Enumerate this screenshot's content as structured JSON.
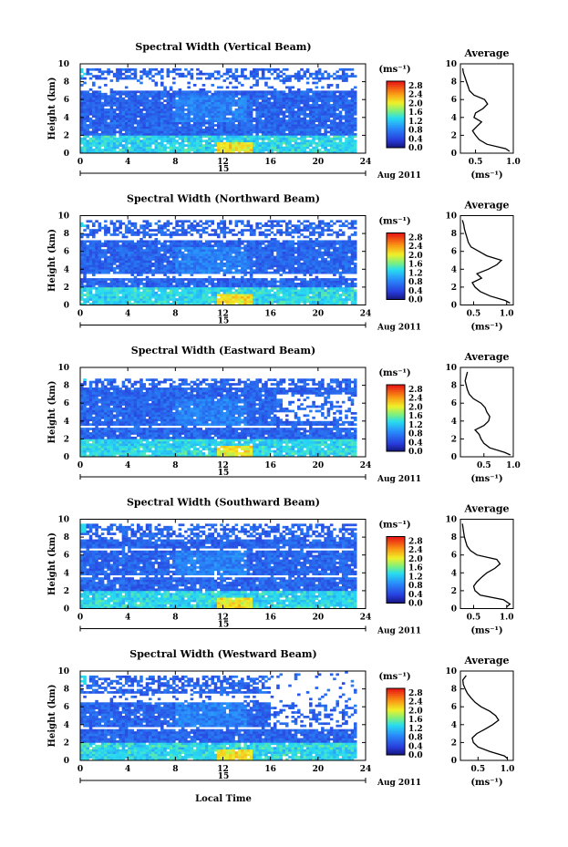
{
  "figure": {
    "xlabel_bottom": "Local Time",
    "unit_label": "(ms⁻¹)",
    "date_label": "Aug 2011",
    "day_label": "15",
    "profile_title": "Average",
    "profile_xlabel": "(ms⁻¹)"
  },
  "chart_data": [
    {
      "type": "heatmap",
      "title": "Spectral Width (Vertical Beam)",
      "xlabel": "",
      "ylabel": "Height (km)",
      "xlim": [
        0,
        24
      ],
      "ylim": [
        0,
        10
      ],
      "x_ticks": [
        0,
        4,
        8,
        12,
        16,
        20,
        24
      ],
      "y_ticks": [
        0,
        2,
        4,
        6,
        8,
        10
      ],
      "colorbar": {
        "range": [
          0.0,
          3.0
        ],
        "ticks": [
          "0.0",
          "0.4",
          "0.8",
          "1.2",
          "1.6",
          "2.0",
          "2.4",
          "2.8"
        ]
      },
      "coverage_top_km": 9.5,
      "gap_layers_km": [
        [
          7.0,
          8.2
        ]
      ],
      "profile": {
        "title": "Average",
        "xlim": [
          0.3,
          1.0
        ],
        "x_ticks": [
          0.5,
          1.0
        ],
        "heights_km": [
          0.2,
          0.5,
          1,
          1.5,
          2,
          2.5,
          3,
          3.5,
          4,
          4.5,
          5,
          5.5,
          6,
          6.5,
          7,
          7.5,
          8,
          8.5,
          9,
          9.5
        ],
        "values": [
          0.95,
          0.9,
          0.65,
          0.55,
          0.5,
          0.46,
          0.52,
          0.58,
          0.48,
          0.5,
          0.6,
          0.66,
          0.62,
          0.48,
          0.42,
          0.4,
          0.38,
          0.36,
          0.34,
          0.33
        ]
      }
    },
    {
      "type": "heatmap",
      "title": "Spectral Width (Northward Beam)",
      "xlabel": "",
      "ylabel": "Height (km)",
      "xlim": [
        0,
        24
      ],
      "ylim": [
        0,
        10
      ],
      "x_ticks": [
        0,
        4,
        8,
        12,
        16,
        20,
        24
      ],
      "y_ticks": [
        0,
        2,
        4,
        6,
        8,
        10
      ],
      "colorbar": {
        "range": [
          0.0,
          3.0
        ],
        "ticks": [
          "0.0",
          "0.4",
          "0.8",
          "1.2",
          "1.6",
          "2.0",
          "2.4",
          "2.8"
        ]
      },
      "coverage_top_km": 9.6,
      "gap_layers_km": [
        [
          7.2,
          7.8
        ],
        [
          3.0,
          3.5
        ]
      ],
      "profile": {
        "title": "Average",
        "xlim": [
          0.3,
          1.1
        ],
        "x_ticks": [
          0.5,
          1.0
        ],
        "heights_km": [
          0.2,
          0.5,
          1,
          1.5,
          2,
          2.5,
          3,
          3.5,
          4,
          4.5,
          5,
          5.5,
          6,
          6.5,
          7,
          7.5,
          8,
          8.5,
          9,
          9.5
        ],
        "values": [
          1.05,
          0.98,
          0.75,
          0.6,
          0.52,
          0.48,
          0.62,
          0.55,
          0.72,
          0.85,
          0.92,
          0.7,
          0.58,
          0.46,
          0.42,
          0.4,
          0.38,
          0.36,
          0.35,
          0.33
        ]
      }
    },
    {
      "type": "heatmap",
      "title": "Spectral Width (Eastward Beam)",
      "xlabel": "",
      "ylabel": "Height (km)",
      "xlim": [
        0,
        24
      ],
      "ylim": [
        0,
        10
      ],
      "x_ticks": [
        0,
        4,
        8,
        12,
        16,
        20,
        24
      ],
      "y_ticks": [
        0,
        2,
        4,
        6,
        8,
        10
      ],
      "colorbar": {
        "range": [
          0.0,
          3.0
        ],
        "ticks": [
          "0.0",
          "0.4",
          "0.8",
          "1.2",
          "1.6",
          "2.0",
          "2.4",
          "2.8"
        ]
      },
      "coverage_top_km": 8.8,
      "gap_layers_km": [
        [
          3.2,
          3.6
        ]
      ],
      "profile": {
        "title": "Average",
        "xlim": [
          0.1,
          1.0
        ],
        "x_ticks": [
          0.5,
          1.0
        ],
        "heights_km": [
          0.2,
          0.5,
          1,
          1.5,
          2,
          2.5,
          3,
          3.5,
          4,
          4.5,
          5,
          5.5,
          6,
          6.5,
          7,
          7.5,
          8,
          8.5,
          9,
          9.5
        ],
        "values": [
          0.95,
          0.85,
          0.6,
          0.5,
          0.45,
          0.42,
          0.35,
          0.5,
          0.58,
          0.6,
          0.55,
          0.52,
          0.45,
          0.32,
          0.25,
          0.22,
          0.2,
          0.18,
          0.2,
          0.22
        ]
      }
    },
    {
      "type": "heatmap",
      "title": "Spectral Width (Southward Beam)",
      "xlabel": "",
      "ylabel": "Height (km)",
      "xlim": [
        0,
        24
      ],
      "ylim": [
        0,
        10
      ],
      "x_ticks": [
        0,
        4,
        8,
        12,
        16,
        20,
        24
      ],
      "y_ticks": [
        0,
        2,
        4,
        6,
        8,
        10
      ],
      "colorbar": {
        "range": [
          0.0,
          3.0
        ],
        "ticks": [
          "0.0",
          "0.4",
          "0.8",
          "1.2",
          "1.6",
          "2.0",
          "2.4",
          "2.8"
        ]
      },
      "coverage_top_km": 9.6,
      "gap_layers_km": [
        [
          6.4,
          6.8
        ],
        [
          3.4,
          3.8
        ]
      ],
      "profile": {
        "title": "Average",
        "xlim": [
          0.3,
          1.1
        ],
        "x_ticks": [
          0.5,
          1.0
        ],
        "heights_km": [
          0.2,
          0.5,
          1,
          1.5,
          2,
          2.5,
          3,
          3.5,
          4,
          4.5,
          5,
          5.5,
          6,
          6.5,
          7,
          7.5,
          8,
          8.5,
          9,
          9.5
        ],
        "values": [
          1.0,
          1.05,
          0.95,
          0.6,
          0.52,
          0.5,
          0.55,
          0.62,
          0.7,
          0.82,
          0.9,
          0.85,
          0.55,
          0.45,
          0.4,
          0.38,
          0.36,
          0.35,
          0.34,
          0.33
        ]
      }
    },
    {
      "type": "heatmap",
      "title": "Spectral Width (Westward Beam)",
      "xlabel": "Local Time",
      "ylabel": "Height (km)",
      "xlim": [
        0,
        24
      ],
      "ylim": [
        0,
        10
      ],
      "x_ticks": [
        0,
        4,
        8,
        12,
        16,
        20,
        24
      ],
      "y_ticks": [
        0,
        2,
        4,
        6,
        8,
        10
      ],
      "colorbar": {
        "range": [
          0.0,
          3.0
        ],
        "ticks": [
          "0.0",
          "0.4",
          "0.8",
          "1.2",
          "1.6",
          "2.0",
          "2.4",
          "2.8"
        ]
      },
      "coverage_top_km": 9.5,
      "gap_layers_km": [
        [
          6.4,
          7.4
        ],
        [
          3.4,
          3.8
        ]
      ],
      "profile": {
        "title": "Average",
        "xlim": [
          0.2,
          1.1
        ],
        "x_ticks": [
          0.5,
          1.0
        ],
        "heights_km": [
          0.2,
          0.5,
          1,
          1.5,
          2,
          2.5,
          3,
          3.5,
          4,
          4.5,
          5,
          5.5,
          6,
          6.5,
          7,
          7.5,
          8,
          8.5,
          9,
          9.5
        ],
        "values": [
          1.0,
          0.95,
          0.7,
          0.5,
          0.42,
          0.4,
          0.48,
          0.62,
          0.75,
          0.85,
          0.8,
          0.7,
          0.55,
          0.45,
          0.38,
          0.32,
          0.28,
          0.25,
          0.24,
          0.3
        ]
      }
    }
  ]
}
